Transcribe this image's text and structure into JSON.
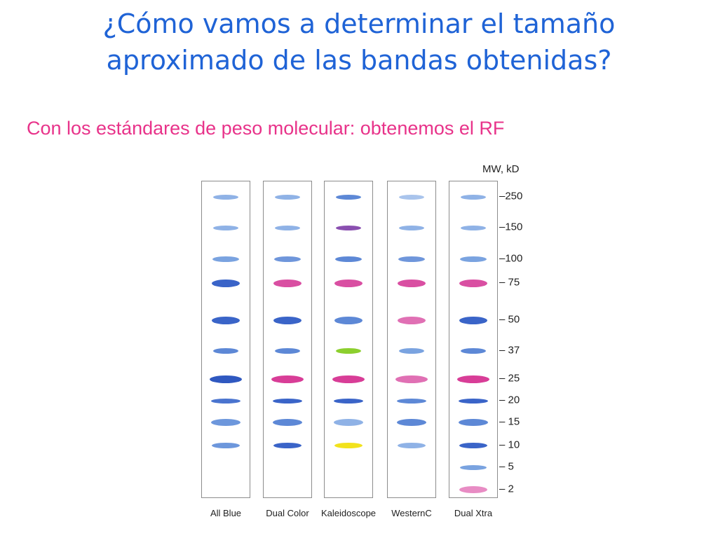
{
  "slide": {
    "title_line1": "¿Cómo vamos a determinar el tamaño",
    "title_line2": "aproximado de las bandas obtenidas?",
    "subtitle": "Con los estándares de peso molecular: obtenemos el RF"
  },
  "mw_axis": {
    "title": "MW, kD",
    "ticks": [
      "250",
      "150",
      "100",
      "75",
      "50",
      "37",
      "25",
      "20",
      "15",
      "10",
      "5",
      "2"
    ]
  },
  "lanes": [
    {
      "label": "All Blue",
      "bands": [
        {
          "mw": "250",
          "color": "#8fb2e6"
        },
        {
          "mw": "150",
          "color": "#8fb2e6"
        },
        {
          "mw": "100",
          "color": "#7aa3e0"
        },
        {
          "mw": "75",
          "color": "#3a64c8"
        },
        {
          "mw": "50",
          "color": "#3a64c8"
        },
        {
          "mw": "37",
          "color": "#5d88d6"
        },
        {
          "mw": "25",
          "color": "#2f58c0"
        },
        {
          "mw": "20",
          "color": "#4a74cf"
        },
        {
          "mw": "15",
          "color": "#6d97dc"
        },
        {
          "mw": "10",
          "color": "#6d97dc"
        }
      ]
    },
    {
      "label": "Dual Color",
      "bands": [
        {
          "mw": "250",
          "color": "#8fb2e6"
        },
        {
          "mw": "150",
          "color": "#8fb2e6"
        },
        {
          "mw": "100",
          "color": "#6f96db"
        },
        {
          "mw": "75",
          "color": "#d94fa2"
        },
        {
          "mw": "50",
          "color": "#3a64c8"
        },
        {
          "mw": "37",
          "color": "#5d88d6"
        },
        {
          "mw": "25",
          "color": "#d83d97"
        },
        {
          "mw": "20",
          "color": "#3a64c8"
        },
        {
          "mw": "15",
          "color": "#5d88d6"
        },
        {
          "mw": "10",
          "color": "#3a64c8"
        }
      ]
    },
    {
      "label": "Kaleidoscope",
      "bands": [
        {
          "mw": "250",
          "color": "#5d88d6"
        },
        {
          "mw": "150",
          "color": "#8a4fb0"
        },
        {
          "mw": "100",
          "color": "#5d88d6"
        },
        {
          "mw": "75",
          "color": "#d94fa2"
        },
        {
          "mw": "50",
          "color": "#5d88d6"
        },
        {
          "mw": "37",
          "color": "#8ccf2e"
        },
        {
          "mw": "25",
          "color": "#d83d97"
        },
        {
          "mw": "20",
          "color": "#3a64c8"
        },
        {
          "mw": "15",
          "color": "#8fb2e6"
        },
        {
          "mw": "10",
          "color": "#f2e21c"
        }
      ]
    },
    {
      "label": "WesternC",
      "bands": [
        {
          "mw": "250",
          "color": "#a9c4ec"
        },
        {
          "mw": "150",
          "color": "#8fb2e6"
        },
        {
          "mw": "100",
          "color": "#6f96db"
        },
        {
          "mw": "75",
          "color": "#d94fa2"
        },
        {
          "mw": "50",
          "color": "#e070b4"
        },
        {
          "mw": "37",
          "color": "#7aa3e0"
        },
        {
          "mw": "25",
          "color": "#e070b4"
        },
        {
          "mw": "20",
          "color": "#5d88d6"
        },
        {
          "mw": "15",
          "color": "#5d88d6"
        },
        {
          "mw": "10",
          "color": "#8fb2e6"
        }
      ]
    },
    {
      "label": "Dual Xtra",
      "bands": [
        {
          "mw": "250",
          "color": "#8fb2e6"
        },
        {
          "mw": "150",
          "color": "#8fb2e6"
        },
        {
          "mw": "100",
          "color": "#7aa3e0"
        },
        {
          "mw": "75",
          "color": "#d94fa2"
        },
        {
          "mw": "50",
          "color": "#3a64c8"
        },
        {
          "mw": "37",
          "color": "#5d88d6"
        },
        {
          "mw": "25",
          "color": "#d83d97"
        },
        {
          "mw": "20",
          "color": "#3a64c8"
        },
        {
          "mw": "15",
          "color": "#5d88d6"
        },
        {
          "mw": "10",
          "color": "#3a64c8"
        },
        {
          "mw": "5",
          "color": "#7aa3e0"
        },
        {
          "mw": "2",
          "color": "#e88cc4"
        }
      ]
    }
  ]
}
